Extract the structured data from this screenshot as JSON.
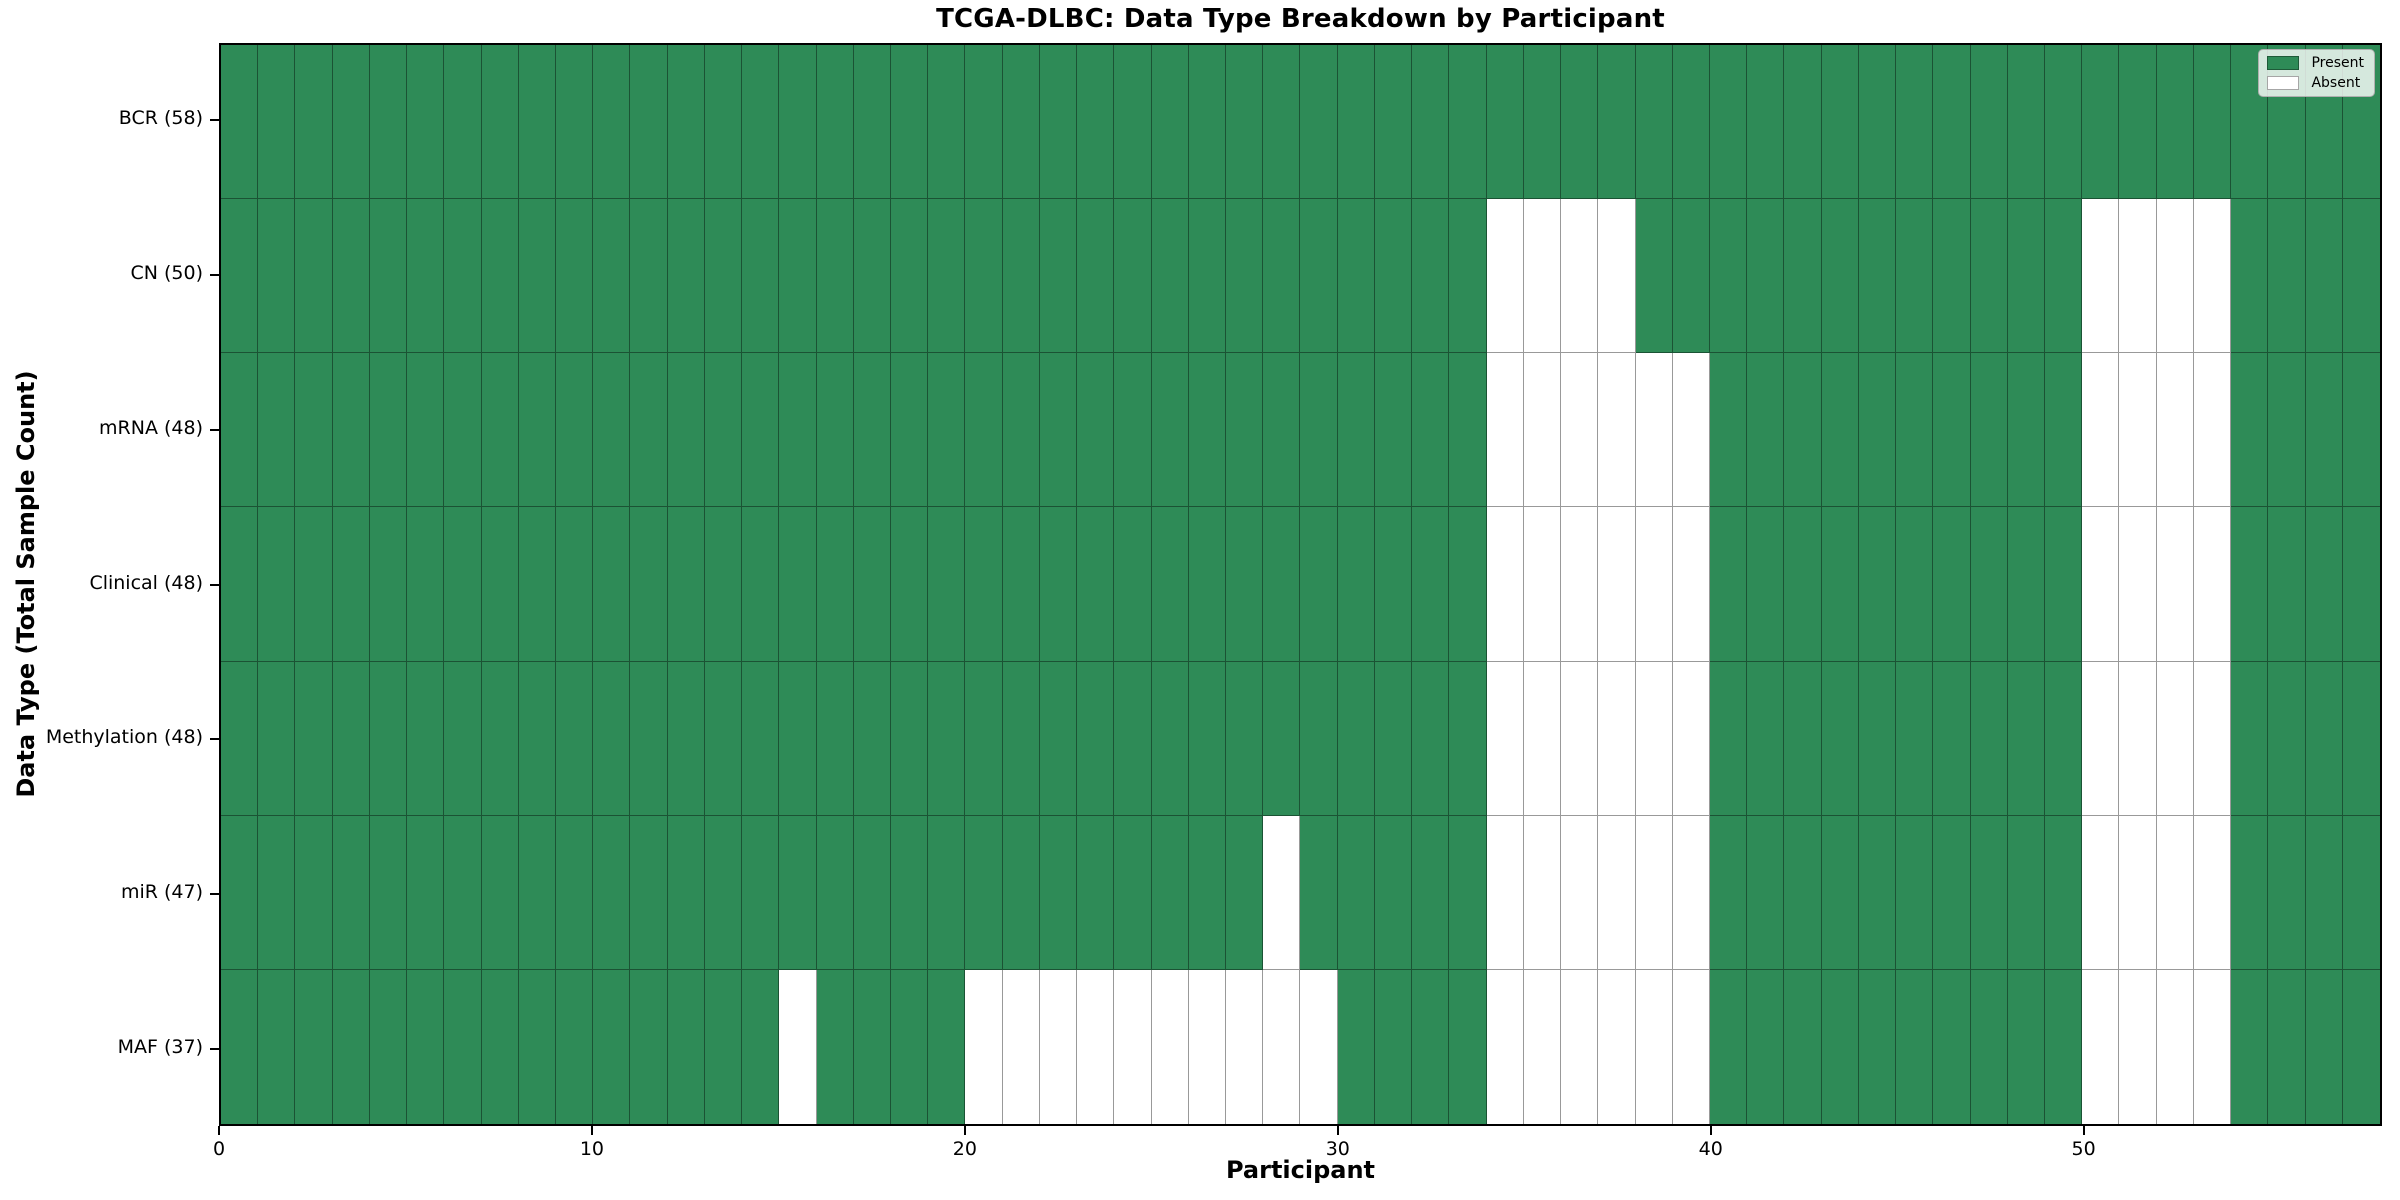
{
  "chart_data": {
    "type": "heatmap",
    "title": "TCGA-DLBC: Data Type Breakdown by Participant",
    "xlabel": "Participant",
    "ylabel": "Data Type (Total Sample Count)",
    "x_tick_labels": [
      "0",
      "10",
      "20",
      "30",
      "40",
      "50"
    ],
    "x_tick_values": [
      0,
      10,
      20,
      30,
      40,
      50
    ],
    "x_range": [
      0,
      58
    ],
    "n_participants": 58,
    "grid": "cell edges on",
    "legend": {
      "position": "upper right",
      "items": [
        {
          "label": "Present",
          "color": "#2E8B57"
        },
        {
          "label": "Absent",
          "color": "#ffffff"
        }
      ]
    },
    "colors": {
      "present": "#2E8B57",
      "absent": "#ffffff",
      "grid_line": "rgba(0,0,0,0.4)",
      "spine": "#000000"
    },
    "rows": [
      {
        "label": "BCR (58)",
        "data_type": "BCR",
        "present_count": 58,
        "absent_participants": []
      },
      {
        "label": "CN (50)",
        "data_type": "CN",
        "present_count": 50,
        "absent_participants": [
          34,
          35,
          36,
          37,
          50,
          51,
          52,
          53
        ]
      },
      {
        "label": "mRNA (48)",
        "data_type": "mRNA",
        "present_count": 48,
        "absent_participants": [
          34,
          35,
          36,
          37,
          38,
          39,
          50,
          51,
          52,
          53
        ]
      },
      {
        "label": "Clinical (48)",
        "data_type": "Clinical",
        "present_count": 48,
        "absent_participants": [
          34,
          35,
          36,
          37,
          38,
          39,
          50,
          51,
          52,
          53
        ]
      },
      {
        "label": "Methylation (48)",
        "data_type": "Methylation",
        "present_count": 48,
        "absent_participants": [
          34,
          35,
          36,
          37,
          38,
          39,
          50,
          51,
          52,
          53
        ]
      },
      {
        "label": "miR (47)",
        "data_type": "miR",
        "present_count": 47,
        "absent_participants": [
          28,
          34,
          35,
          36,
          37,
          38,
          39,
          50,
          51,
          52,
          53
        ]
      },
      {
        "label": "MAF (37)",
        "data_type": "MAF",
        "present_count": 37,
        "absent_participants": [
          15,
          20,
          21,
          22,
          23,
          24,
          25,
          26,
          27,
          28,
          29,
          34,
          35,
          36,
          37,
          38,
          39,
          50,
          51,
          52,
          53
        ]
      }
    ]
  }
}
